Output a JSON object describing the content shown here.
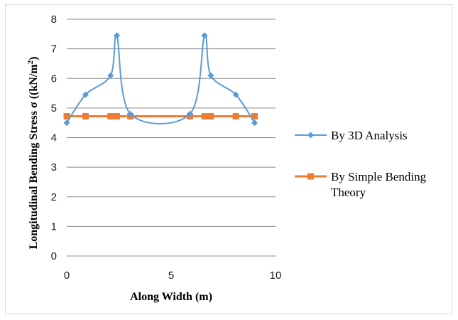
{
  "chart_data": {
    "type": "line",
    "xlabel": "Along Width  (m)",
    "ylabel": "Longitudinal  Bending Stress σ ((kN/m",
    "ylabel_sup": "2",
    "ylabel_end": ")",
    "xlim": [
      0,
      10
    ],
    "ylim": [
      0,
      8
    ],
    "x_ticks": [
      0,
      5,
      10
    ],
    "y_ticks": [
      0,
      1,
      2,
      3,
      4,
      5,
      6,
      7,
      8
    ],
    "grid": "horizontal",
    "legend_position": "right",
    "series": [
      {
        "name": "By 3D Analysis",
        "color": "#5b9bd5",
        "marker": "diamond",
        "x": [
          0,
          0.9,
          2.1,
          2.4,
          3.05,
          5.9,
          6.6,
          6.9,
          8.1,
          9.0
        ],
        "y": [
          4.5,
          5.45,
          6.1,
          7.45,
          4.8,
          4.8,
          7.45,
          6.1,
          5.45,
          4.5
        ]
      },
      {
        "name": "By Simple Bending\nTheory",
        "name_line1": "By Simple Bending",
        "name_line2": "Theory",
        "color": "#ed7d31",
        "marker": "square",
        "x": [
          0,
          0.9,
          2.1,
          2.4,
          3.05,
          5.9,
          6.6,
          6.9,
          8.1,
          9.0
        ],
        "y": [
          4.72,
          4.72,
          4.72,
          4.72,
          4.72,
          4.72,
          4.72,
          4.72,
          4.72,
          4.72
        ]
      }
    ]
  }
}
